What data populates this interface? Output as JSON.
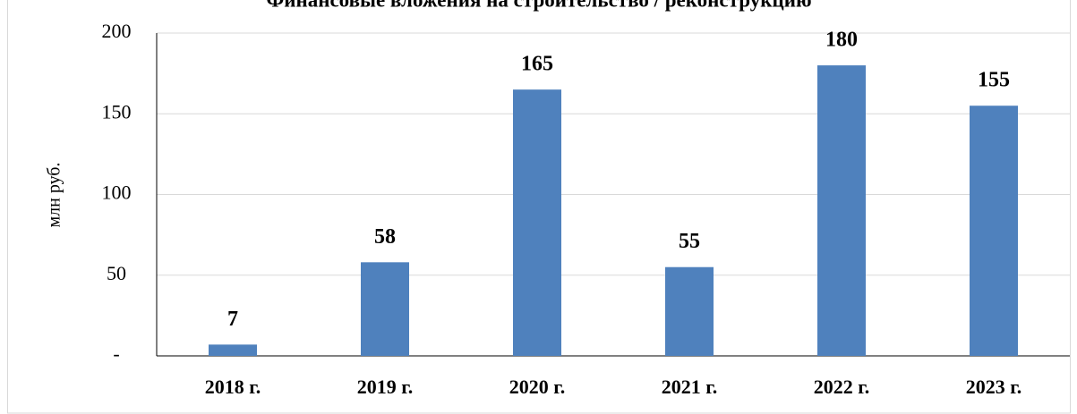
{
  "chart_data": {
    "type": "bar",
    "title": "Финансовые вложения на строительство / реконструкцию",
    "y_label": "млн руб.",
    "categories": [
      "2018 г.",
      "2019 г.",
      "2020 г.",
      "2021 г.",
      "2022 г.",
      "2023 г."
    ],
    "values": [
      7,
      58,
      165,
      55,
      180,
      155
    ],
    "color": "#4f81bd",
    "ylim": [
      0,
      200
    ],
    "yticks": [
      {
        "value": 0,
        "label": "-"
      },
      50,
      100,
      150,
      200
    ],
    "grid": true
  }
}
